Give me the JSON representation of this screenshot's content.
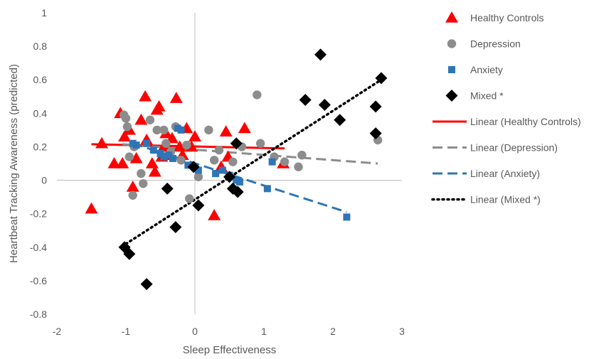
{
  "chart_data": {
    "type": "scatter",
    "xlabel": "Sleep Effectiveness",
    "ylabel": "Heartbeat Tracking Awareness (predicted)",
    "xlim": [
      -2,
      3
    ],
    "ylim": [
      -0.8,
      1
    ],
    "x_ticks": [
      "-2",
      "-1",
      "0",
      "1",
      "2",
      "3"
    ],
    "y_ticks": [
      "1",
      "0.8",
      "0.6",
      "0.4",
      "0.2",
      "0",
      "-0.2",
      "-0.4",
      "-0.6",
      "-0.8"
    ],
    "legend_position": "right",
    "grid": false,
    "series": [
      {
        "name": "Healthy Controls",
        "marker": "triangle",
        "color": "#ff0000",
        "points": [
          [
            -1.5,
            -0.17
          ],
          [
            -1.35,
            0.22
          ],
          [
            -1.17,
            0.1
          ],
          [
            -1.08,
            0.4
          ],
          [
            -1.05,
            0.1
          ],
          [
            -1.02,
            0.26
          ],
          [
            -0.95,
            0.3
          ],
          [
            -0.9,
            -0.04
          ],
          [
            -0.85,
            0.13
          ],
          [
            -0.78,
            0.36
          ],
          [
            -0.72,
            0.5
          ],
          [
            -0.7,
            0.24
          ],
          [
            -0.62,
            0.1
          ],
          [
            -0.58,
            0.05
          ],
          [
            -0.55,
            0.42
          ],
          [
            -0.52,
            0.44
          ],
          [
            -0.48,
            0.14
          ],
          [
            -0.45,
            0.2
          ],
          [
            -0.42,
            0.28
          ],
          [
            -0.38,
            0.15
          ],
          [
            -0.33,
            0.25
          ],
          [
            -0.27,
            0.49
          ],
          [
            -0.22,
            0.2
          ],
          [
            -0.18,
            0.15
          ],
          [
            -0.12,
            0.31
          ],
          [
            -0.05,
            0.2
          ],
          [
            0.0,
            0.26
          ],
          [
            0.28,
            -0.21
          ],
          [
            0.38,
            0.08
          ],
          [
            0.45,
            0.29
          ],
          [
            0.48,
            0.14
          ],
          [
            0.72,
            0.31
          ],
          [
            1.28,
            0.1
          ]
        ]
      },
      {
        "name": "Depression",
        "marker": "circle",
        "color": "#8c8c8c",
        "points": [
          [
            -1.03,
            0.39
          ],
          [
            -1.0,
            0.37
          ],
          [
            -0.98,
            0.32
          ],
          [
            -0.95,
            0.14
          ],
          [
            -0.9,
            -0.09
          ],
          [
            -0.88,
            0.2
          ],
          [
            -0.78,
            0.04
          ],
          [
            -0.75,
            -0.02
          ],
          [
            -0.65,
            0.36
          ],
          [
            -0.55,
            0.3
          ],
          [
            -0.45,
            0.3
          ],
          [
            -0.42,
            0.22
          ],
          [
            -0.35,
            0.17
          ],
          [
            -0.28,
            0.32
          ],
          [
            -0.2,
            0.12
          ],
          [
            -0.12,
            0.21
          ],
          [
            -0.08,
            -0.11
          ],
          [
            0.05,
            0.02
          ],
          [
            0.2,
            0.3
          ],
          [
            0.28,
            0.12
          ],
          [
            0.35,
            0.18
          ],
          [
            0.55,
            0.11
          ],
          [
            0.68,
            0.2
          ],
          [
            0.9,
            0.51
          ],
          [
            0.95,
            0.22
          ],
          [
            1.15,
            0.14
          ],
          [
            1.3,
            0.11
          ],
          [
            1.5,
            0.08
          ],
          [
            1.55,
            0.15
          ],
          [
            2.65,
            0.24
          ]
        ]
      },
      {
        "name": "Anxiety",
        "marker": "square",
        "color": "#2e75b6",
        "points": [
          [
            -0.9,
            0.22
          ],
          [
            -0.85,
            0.21
          ],
          [
            -0.7,
            0.22
          ],
          [
            -0.6,
            0.18
          ],
          [
            -0.5,
            0.16
          ],
          [
            -0.45,
            0.14
          ],
          [
            -0.38,
            0.15
          ],
          [
            -0.32,
            0.13
          ],
          [
            -0.25,
            0.31
          ],
          [
            -0.2,
            0.3
          ],
          [
            -0.1,
            0.09
          ],
          [
            0.05,
            0.06
          ],
          [
            0.3,
            0.04
          ],
          [
            0.4,
            0.06
          ],
          [
            0.5,
            0.03
          ],
          [
            0.6,
            0.0
          ],
          [
            0.65,
            -0.01
          ],
          [
            1.05,
            -0.05
          ],
          [
            1.12,
            0.11
          ],
          [
            2.2,
            -0.22
          ]
        ]
      },
      {
        "name": "Mixed *",
        "marker": "diamond",
        "color": "#000000",
        "points": [
          [
            -1.02,
            -0.4
          ],
          [
            -0.95,
            -0.44
          ],
          [
            -0.7,
            -0.62
          ],
          [
            -0.4,
            -0.05
          ],
          [
            -0.28,
            -0.28
          ],
          [
            -0.02,
            0.08
          ],
          [
            0.05,
            -0.15
          ],
          [
            0.5,
            0.02
          ],
          [
            0.55,
            -0.05
          ],
          [
            0.6,
            0.22
          ],
          [
            0.62,
            -0.07
          ],
          [
            1.6,
            0.48
          ],
          [
            1.82,
            0.75
          ],
          [
            1.88,
            0.45
          ],
          [
            2.1,
            0.36
          ],
          [
            2.62,
            0.28
          ],
          [
            2.62,
            0.44
          ],
          [
            2.7,
            0.61
          ]
        ]
      }
    ],
    "trendlines": [
      {
        "name": "Linear (Healthy Controls)",
        "color": "#ff0000",
        "dash": "solid",
        "x0": -1.5,
        "y0": 0.215,
        "x1": 1.3,
        "y1": 0.19
      },
      {
        "name": "Linear (Depression)",
        "color": "#8c8c8c",
        "dash": "dashed",
        "x0": -1.05,
        "y0": 0.215,
        "x1": 2.65,
        "y1": 0.1
      },
      {
        "name": "Linear (Anxiety)",
        "color": "#2e75b6",
        "dash": "dashed",
        "x0": -0.9,
        "y0": 0.22,
        "x1": 2.2,
        "y1": -0.19
      },
      {
        "name": "Linear (Mixed *)",
        "color": "#000000",
        "dash": "dotted",
        "x0": -1.0,
        "y0": -0.38,
        "x1": 2.7,
        "y1": 0.6
      }
    ]
  }
}
